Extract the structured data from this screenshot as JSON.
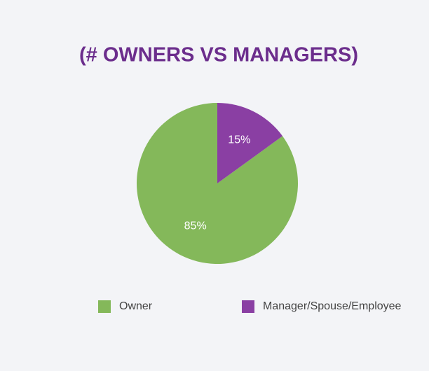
{
  "chart_data": {
    "type": "pie",
    "title": "(# OWNERS VS MANAGERS)",
    "categories": [
      "Owner",
      "Manager/Spouse/Employee"
    ],
    "values": [
      85,
      15
    ],
    "value_labels": [
      "85%",
      "15%"
    ],
    "colors": [
      "#84b85a",
      "#8a3fa3"
    ]
  }
}
